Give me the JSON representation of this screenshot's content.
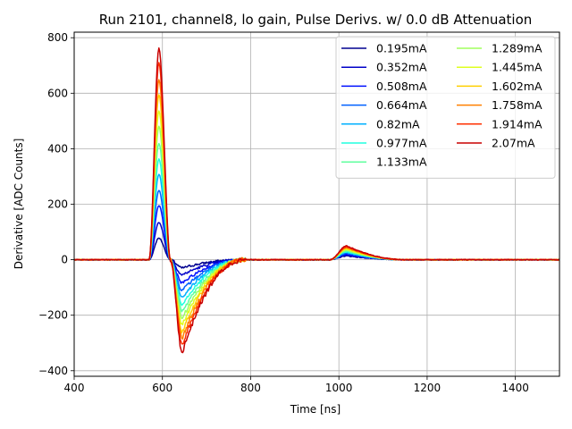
{
  "chart_data": {
    "type": "line",
    "title": "Run 2101, channel8, lo gain, Pulse Derivs. w/ 0.0 dB Attenuation",
    "xlabel": "Time [ns]",
    "ylabel": "Derivative [ADC Counts]",
    "xlim": [
      400,
      1500
    ],
    "ylim": [
      -420,
      820
    ],
    "xticks": [
      400,
      600,
      800,
      1000,
      1200,
      1400
    ],
    "yticks": [
      -400,
      -200,
      0,
      200,
      400,
      600,
      800
    ],
    "grid": true,
    "legend_position": "top-right",
    "legend_columns": 2,
    "series": [
      {
        "name": "0.195mA",
        "color": "#00008f",
        "peak": 78,
        "trough": -30,
        "bump": 14
      },
      {
        "name": "0.352mA",
        "color": "#0000c8",
        "peak": 135,
        "trough": -55,
        "bump": 17
      },
      {
        "name": "0.508mA",
        "color": "#0010ff",
        "peak": 195,
        "trough": -85,
        "bump": 20
      },
      {
        "name": "0.664mA",
        "color": "#0060ff",
        "peak": 250,
        "trough": -110,
        "bump": 23
      },
      {
        "name": "0.82mA",
        "color": "#00b0ff",
        "peak": 308,
        "trough": -135,
        "bump": 26
      },
      {
        "name": "0.977mA",
        "color": "#20ffdf",
        "peak": 362,
        "trough": -160,
        "bump": 29
      },
      {
        "name": "1.133mA",
        "color": "#60ff9f",
        "peak": 420,
        "trough": -185,
        "bump": 32
      },
      {
        "name": "1.289mA",
        "color": "#a0ff5f",
        "peak": 480,
        "trough": -210,
        "bump": 35
      },
      {
        "name": "1.445mA",
        "color": "#dfff20",
        "peak": 535,
        "trough": -235,
        "bump": 38
      },
      {
        "name": "1.602mA",
        "color": "#ffcf00",
        "peak": 595,
        "trough": -260,
        "bump": 41
      },
      {
        "name": "1.758mA",
        "color": "#ff8000",
        "peak": 650,
        "trough": -285,
        "bump": 44
      },
      {
        "name": "1.914mA",
        "color": "#ff3000",
        "peak": 710,
        "trough": -310,
        "bump": 47
      },
      {
        "name": "2.07mA",
        "color": "#c80000",
        "peak": 762,
        "trough": -335,
        "bump": 50
      }
    ],
    "curve_shape": {
      "baseline": 0,
      "rise_start": 570,
      "peak_x": 592,
      "zero_cross_x": 618,
      "trough_x": 645,
      "trough_recovery_end": 790,
      "bump_start": 980,
      "bump_peak_x": 1018,
      "bump_end": 1150
    }
  }
}
